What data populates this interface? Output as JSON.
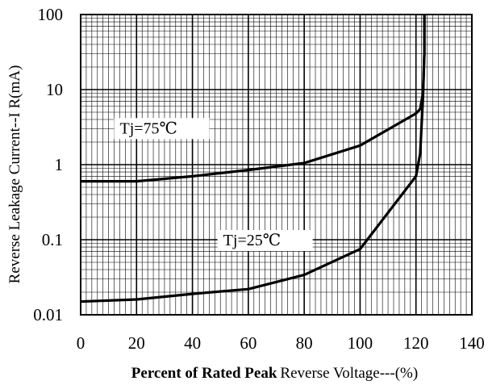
{
  "chart_data": {
    "type": "line",
    "xlabel_part1": "Percent of Rated Peak",
    "xlabel_part2": "Reverse Voltage---(%)",
    "ylabel": "Reverse Leakage Current--I R(mA)",
    "xlim": [
      0,
      140
    ],
    "ylim": [
      0.01,
      100
    ],
    "yscale": "log",
    "x_ticks": [
      "0",
      "20",
      "40",
      "60",
      "80",
      "100",
      "120",
      "140"
    ],
    "y_ticks": [
      "100",
      "10",
      "1",
      "0.1",
      "0.01"
    ],
    "grid": true,
    "series": [
      {
        "name": "Tj=75℃",
        "x": [
          0,
          20,
          40,
          60,
          80,
          100,
          120,
          121.5,
          122.5,
          123,
          123
        ],
        "y": [
          0.6,
          0.6,
          0.7,
          0.85,
          1.05,
          1.8,
          4.8,
          5.5,
          9,
          30,
          100
        ]
      },
      {
        "name": "Tj=25℃",
        "x": [
          0,
          20,
          40,
          60,
          80,
          100,
          120,
          121.5,
          122.5,
          123,
          123
        ],
        "y": [
          0.015,
          0.016,
          0.019,
          0.022,
          0.034,
          0.075,
          0.7,
          1.4,
          8,
          30,
          100
        ]
      }
    ],
    "annotations": [
      {
        "text": "Tj=75℃",
        "x": 14,
        "y": 3.1
      },
      {
        "text": "Tj=25℃",
        "x": 51,
        "y": 0.1
      }
    ]
  }
}
